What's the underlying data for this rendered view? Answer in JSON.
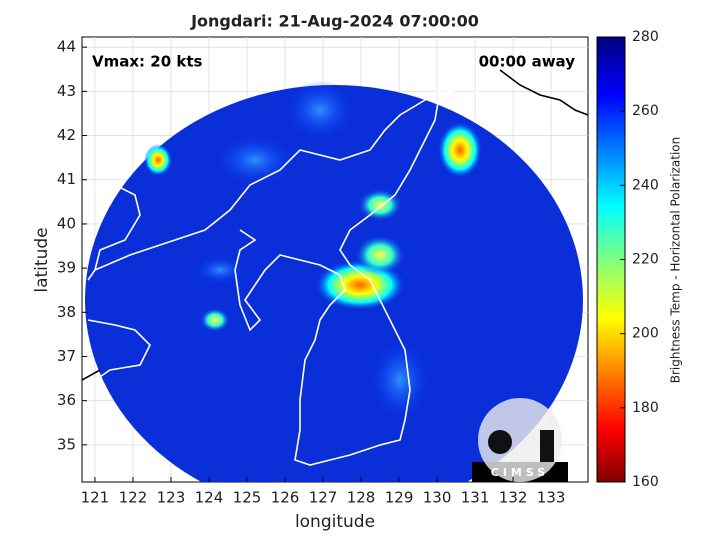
{
  "chart_data": {
    "type": "map",
    "title": "Jongdari: 21-Aug-2024 07:00:00",
    "xlabel": "longitude",
    "ylabel": "latitude",
    "xlim": [
      120.66,
      133.97
    ],
    "ylim": [
      34.16,
      44.23
    ],
    "xticks": [
      121,
      122,
      123,
      124,
      125,
      126,
      127,
      128,
      129,
      130,
      131,
      132,
      133
    ],
    "yticks": [
      35,
      36,
      37,
      38,
      39,
      40,
      41,
      42,
      43,
      44
    ],
    "grid": true,
    "annotations": [
      "Vmax: 20 kts",
      "00:00 away"
    ],
    "logo": "CIMSS",
    "colorbar": {
      "label": "Brightness Temp - Horizontal Polarization",
      "lim": [
        160,
        280
      ],
      "ticks": [
        160,
        180,
        200,
        220,
        240,
        260,
        280
      ]
    }
  }
}
